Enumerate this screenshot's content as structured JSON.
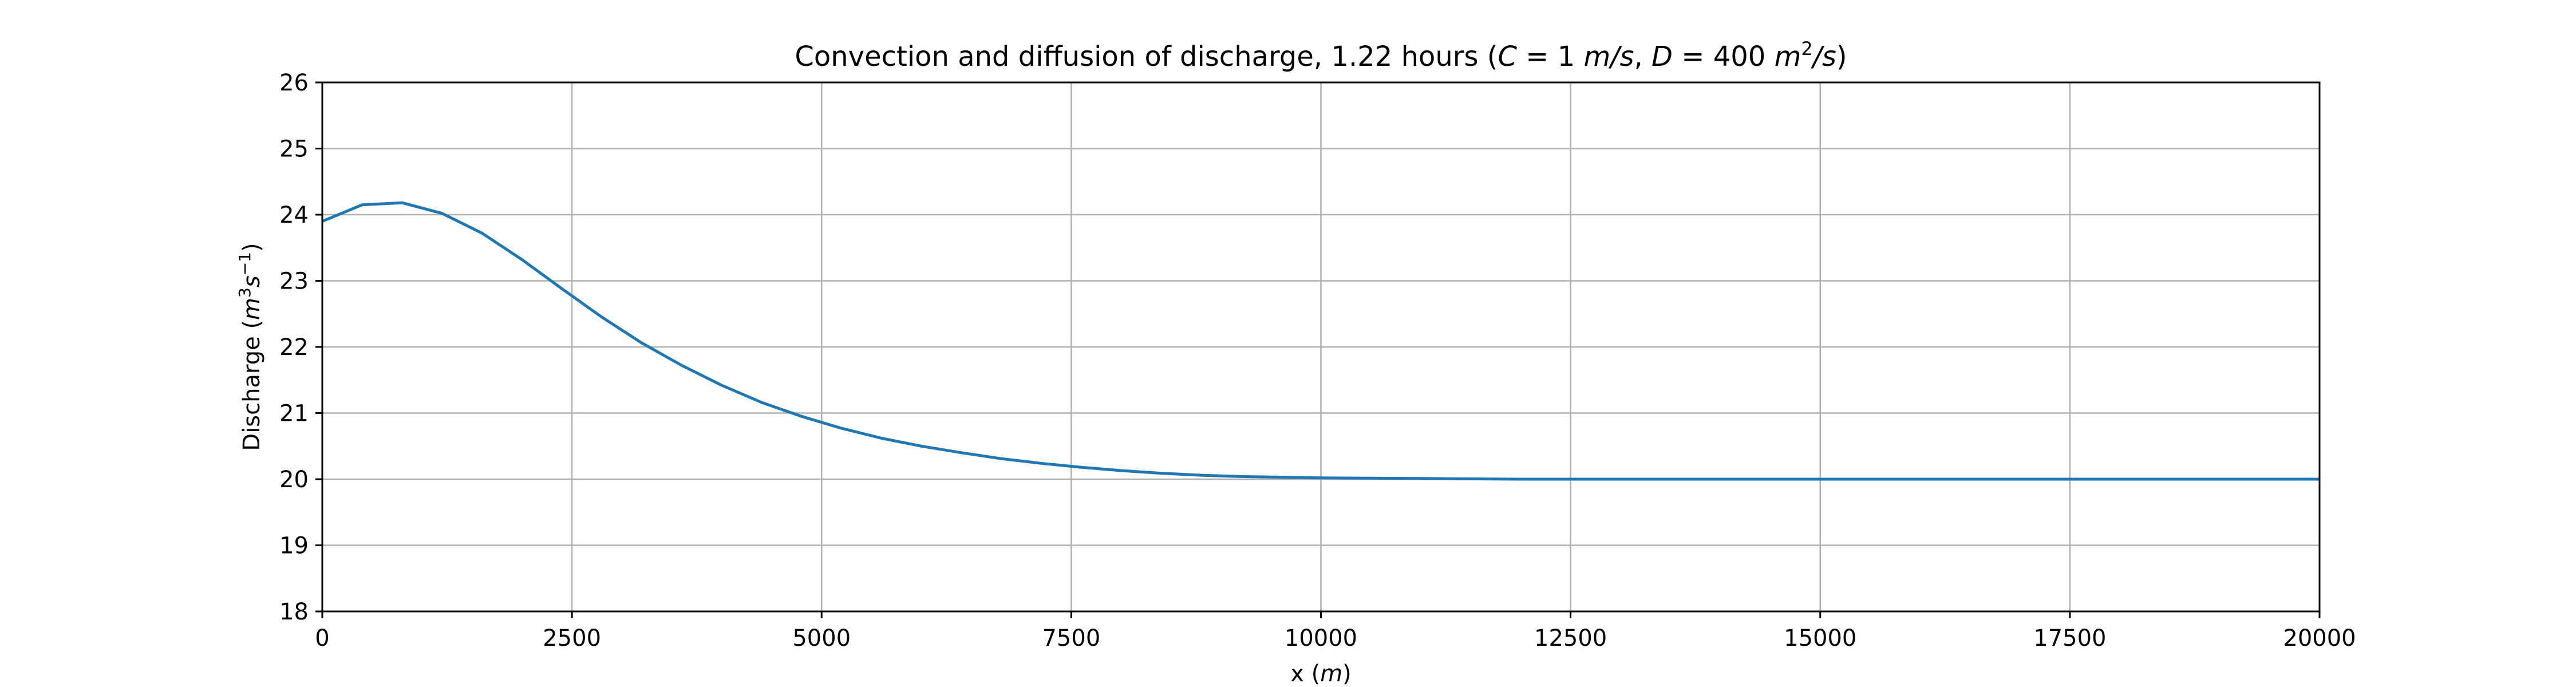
{
  "chart_data": {
    "type": "line",
    "title": "Convection and diffusion of discharge, 1.22 hours (C = 1 m/s, D = 400 m²/s)",
    "title_parts": {
      "prefix": "Convection and diffusion of discharge, 1.22 hours (",
      "c_symbol": "C",
      "c_value": " = 1 ",
      "c_unit": "m/s",
      "separator": ", ",
      "d_symbol": "D",
      "d_value": " = 400 ",
      "d_unit": "m",
      "d_unit_power": "2",
      "d_unit_tail": "/s",
      "suffix": ")"
    },
    "xlabel": "x (m)",
    "xlabel_parts": {
      "text": "x (",
      "unit": "m",
      "close": ")"
    },
    "ylabel": "Discharge (m³s⁻¹)",
    "ylabel_parts": {
      "text": "Discharge (",
      "unit1": "m",
      "pow1": "3",
      "unit2": "s",
      "pow2": "−1",
      "close": ")"
    },
    "xlim": [
      0,
      20000
    ],
    "ylim": [
      18,
      26
    ],
    "xticks": [
      0,
      2500,
      5000,
      7500,
      10000,
      12500,
      15000,
      17500,
      20000
    ],
    "yticks": [
      18,
      19,
      20,
      21,
      22,
      23,
      24,
      25,
      26
    ],
    "xtick_labels": [
      "0",
      "2500",
      "5000",
      "7500",
      "10000",
      "12500",
      "15000",
      "17500",
      "20000"
    ],
    "ytick_labels": [
      "18",
      "19",
      "20",
      "21",
      "22",
      "23",
      "24",
      "25",
      "26"
    ],
    "grid": true,
    "series": [
      {
        "name": "Discharge",
        "color": "#1f77b4",
        "x": [
          0,
          400,
          800,
          1200,
          1600,
          2000,
          2400,
          2800,
          3200,
          3600,
          4000,
          4400,
          4800,
          5200,
          5600,
          6000,
          6400,
          6800,
          7200,
          7600,
          8000,
          8400,
          8800,
          9200,
          9600,
          10000,
          11000,
          12000,
          13000,
          14000,
          15000,
          16000,
          17000,
          18000,
          19000,
          20000
        ],
        "y": [
          23.9,
          24.15,
          24.18,
          24.02,
          23.72,
          23.32,
          22.88,
          22.45,
          22.06,
          21.72,
          21.42,
          21.16,
          20.95,
          20.77,
          20.62,
          20.5,
          20.4,
          20.31,
          20.24,
          20.18,
          20.13,
          20.09,
          20.06,
          20.04,
          20.03,
          20.02,
          20.01,
          20.0,
          20.0,
          20.0,
          20.0,
          20.0,
          20.0,
          20.0,
          20.0,
          20.0
        ]
      }
    ]
  }
}
